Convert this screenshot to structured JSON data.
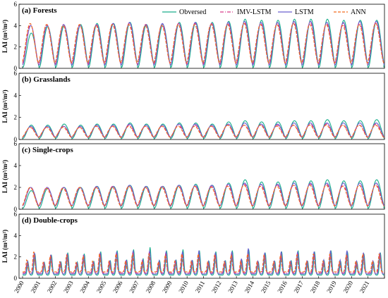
{
  "chart_data": [
    {
      "type": "line",
      "title": "(a) Forests",
      "ylabel": "LAI (m²/m²)",
      "ylim": [
        0,
        6
      ],
      "yticks": [
        "0",
        "2",
        "4",
        "6"
      ],
      "x": [
        "2000",
        "2001",
        "2002",
        "2003",
        "2004",
        "2005",
        "2006",
        "2007",
        "2008",
        "2009",
        "2010",
        "2011",
        "2012",
        "2013",
        "2014",
        "2015",
        "2016",
        "2017",
        "2018",
        "2019",
        "2020",
        "2021"
      ],
      "series": [
        {
          "name": "Obversed",
          "values": [
            3.3,
            3.9,
            4.0,
            4.1,
            4.2,
            4.2,
            4.3,
            4.1,
            4.1,
            4.3,
            4.3,
            4.3,
            4.4,
            4.6,
            4.5,
            4.5,
            4.6,
            4.6,
            4.6,
            4.5,
            4.5,
            4.5
          ]
        },
        {
          "name": "IMV-LSTM",
          "values": [
            4.1,
            4.1,
            4.1,
            4.1,
            4.1,
            4.2,
            4.2,
            4.1,
            4.1,
            4.2,
            4.2,
            4.2,
            4.2,
            4.3,
            4.2,
            4.2,
            4.3,
            4.3,
            4.2,
            4.2,
            4.2,
            4.3
          ]
        },
        {
          "name": "LSTM",
          "values": [
            4.0,
            4.0,
            4.1,
            4.0,
            4.1,
            4.2,
            4.3,
            4.1,
            4.2,
            4.2,
            4.3,
            4.2,
            4.3,
            4.4,
            4.3,
            4.3,
            4.4,
            4.4,
            4.3,
            4.3,
            4.4,
            4.4
          ]
        },
        {
          "name": "ANN",
          "values": [
            4.2,
            4.1,
            4.0,
            4.1,
            4.0,
            4.1,
            4.1,
            4.0,
            4.0,
            4.1,
            4.1,
            4.1,
            4.1,
            4.2,
            4.1,
            4.1,
            4.2,
            4.1,
            4.1,
            4.0,
            4.1,
            4.2
          ]
        }
      ],
      "minimum": {
        "Obversed": 0.1,
        "IMV-LSTM": 0.4,
        "LSTM": 0.3,
        "ANN": 0.5
      }
    },
    {
      "type": "line",
      "title": "(b) Grasslands",
      "ylabel": "LAI (m²/m²)",
      "ylim": [
        0,
        6
      ],
      "yticks": [
        "0",
        "2",
        "4",
        "6"
      ],
      "x": [
        "2000",
        "2001",
        "2002",
        "2003",
        "2004",
        "2005",
        "2006",
        "2007",
        "2008",
        "2009",
        "2010",
        "2011",
        "2012",
        "2013",
        "2014",
        "2015",
        "2016",
        "2017",
        "2018",
        "2019",
        "2020",
        "2021"
      ],
      "series": [
        {
          "name": "Obversed",
          "values": [
            1.3,
            1.3,
            1.4,
            1.3,
            1.4,
            1.4,
            1.5,
            1.4,
            1.4,
            1.5,
            1.5,
            1.4,
            1.6,
            1.7,
            1.6,
            1.6,
            1.7,
            1.7,
            1.8,
            1.7,
            1.7,
            1.8
          ]
        },
        {
          "name": "IMV-LSTM",
          "values": [
            1.1,
            1.1,
            1.2,
            1.1,
            1.2,
            1.2,
            1.3,
            1.2,
            1.2,
            1.3,
            1.3,
            1.2,
            1.3,
            1.3,
            1.3,
            1.3,
            1.3,
            1.4,
            1.4,
            1.3,
            1.3,
            1.4
          ]
        },
        {
          "name": "LSTM",
          "values": [
            1.2,
            1.2,
            1.2,
            1.2,
            1.3,
            1.3,
            1.4,
            1.3,
            1.3,
            1.4,
            1.4,
            1.3,
            1.4,
            1.5,
            1.4,
            1.4,
            1.5,
            1.5,
            1.5,
            1.5,
            1.5,
            1.5
          ]
        },
        {
          "name": "ANN",
          "values": [
            1.1,
            1.1,
            1.1,
            1.1,
            1.2,
            1.2,
            1.2,
            1.2,
            1.2,
            1.2,
            1.2,
            1.2,
            1.3,
            1.3,
            1.3,
            1.2,
            1.3,
            1.3,
            1.3,
            1.3,
            1.3,
            1.3
          ]
        }
      ],
      "minimum": {
        "Obversed": 0.1,
        "IMV-LSTM": 0.2,
        "LSTM": 0.2,
        "ANN": 0.2
      }
    },
    {
      "type": "line",
      "title": "(c) Single-crops",
      "ylabel": "LAI (m²/m²)",
      "ylim": [
        0,
        6
      ],
      "yticks": [
        "0",
        "2",
        "4",
        "6"
      ],
      "x": [
        "2000",
        "2001",
        "2002",
        "2003",
        "2004",
        "2005",
        "2006",
        "2007",
        "2008",
        "2009",
        "2010",
        "2011",
        "2012",
        "2013",
        "2014",
        "2015",
        "2016",
        "2017",
        "2018",
        "2019",
        "2020",
        "2021"
      ],
      "series": [
        {
          "name": "Obversed",
          "values": [
            1.7,
            1.9,
            2.0,
            2.0,
            2.1,
            2.1,
            2.2,
            2.1,
            2.1,
            2.2,
            2.3,
            2.2,
            2.4,
            2.7,
            2.5,
            2.5,
            2.6,
            2.6,
            2.7,
            2.6,
            2.6,
            2.7
          ]
        },
        {
          "name": "IMV-LSTM",
          "values": [
            2.0,
            2.0,
            2.0,
            2.0,
            2.0,
            2.1,
            2.1,
            2.0,
            2.1,
            2.1,
            2.1,
            2.1,
            2.2,
            2.3,
            2.2,
            2.2,
            2.2,
            2.3,
            2.3,
            2.2,
            2.2,
            2.3
          ]
        },
        {
          "name": "LSTM",
          "values": [
            2.0,
            2.0,
            2.0,
            2.0,
            2.1,
            2.1,
            2.2,
            2.1,
            2.1,
            2.2,
            2.2,
            2.2,
            2.3,
            2.4,
            2.3,
            2.3,
            2.4,
            2.4,
            2.4,
            2.4,
            2.4,
            2.4
          ]
        },
        {
          "name": "ANN",
          "values": [
            2.0,
            1.9,
            1.9,
            2.0,
            2.0,
            2.0,
            2.1,
            2.0,
            2.0,
            2.1,
            2.1,
            2.0,
            2.1,
            2.2,
            2.1,
            2.1,
            2.2,
            2.2,
            2.2,
            2.1,
            2.2,
            2.2
          ]
        }
      ],
      "minimum": {
        "Obversed": 0.1,
        "IMV-LSTM": 0.3,
        "LSTM": 0.3,
        "ANN": 0.3
      }
    },
    {
      "type": "line",
      "title": "(d) Double-crops",
      "ylabel": "LAI (m²/m²)",
      "ylim": [
        0,
        6
      ],
      "yticks": [
        "0",
        "2",
        "4",
        "6"
      ],
      "x": [
        "2000",
        "2001",
        "2002",
        "2003",
        "2004",
        "2005",
        "2006",
        "2007",
        "2008",
        "2009",
        "2010",
        "2011",
        "2012",
        "2013",
        "2014",
        "2015",
        "2016",
        "2017",
        "2018",
        "2019",
        "2020",
        "2021"
      ],
      "double_peak": true,
      "series": [
        {
          "name": "Obversed",
          "values": [
            2.3,
            2.2,
            2.4,
            2.3,
            2.5,
            2.6,
            2.7,
            2.9,
            2.6,
            2.7,
            2.6,
            2.5,
            2.6,
            2.7,
            2.4,
            2.5,
            2.6,
            2.5,
            2.6,
            2.5,
            2.3,
            2.4
          ]
        },
        {
          "name": "IMV-LSTM",
          "values": [
            2.2,
            2.1,
            2.2,
            2.1,
            2.3,
            2.3,
            2.4,
            2.4,
            2.3,
            2.3,
            2.3,
            2.2,
            2.3,
            2.3,
            2.2,
            2.2,
            2.3,
            2.3,
            2.3,
            2.2,
            2.2,
            2.3
          ]
        },
        {
          "name": "LSTM",
          "values": [
            2.4,
            2.2,
            2.3,
            2.2,
            2.4,
            2.5,
            2.6,
            2.6,
            2.5,
            2.5,
            2.6,
            2.4,
            2.5,
            2.8,
            2.4,
            2.5,
            2.5,
            2.5,
            2.6,
            2.6,
            2.4,
            2.4
          ]
        },
        {
          "name": "ANN",
          "values": [
            2.5,
            2.1,
            2.2,
            2.1,
            2.3,
            2.3,
            2.3,
            2.3,
            2.2,
            2.3,
            2.3,
            2.2,
            2.2,
            2.3,
            2.2,
            2.2,
            2.2,
            2.3,
            2.3,
            2.2,
            2.3,
            2.3
          ]
        }
      ],
      "minimum": {
        "Obversed": 0.3,
        "IMV-LSTM": 0.5,
        "LSTM": 0.4,
        "ANN": 0.6
      }
    }
  ],
  "legend": {
    "placement": "top-right",
    "items": [
      {
        "label": "Obversed",
        "color": "#1aae8c",
        "style": "solid"
      },
      {
        "label": "IMV-LSTM",
        "color": "#d63a8a",
        "style": "dashdot"
      },
      {
        "label": "LSTM",
        "color": "#6a5fcf",
        "style": "solid"
      },
      {
        "label": "ANN",
        "color": "#f26b1d",
        "style": "dashed"
      }
    ]
  },
  "grid": false
}
